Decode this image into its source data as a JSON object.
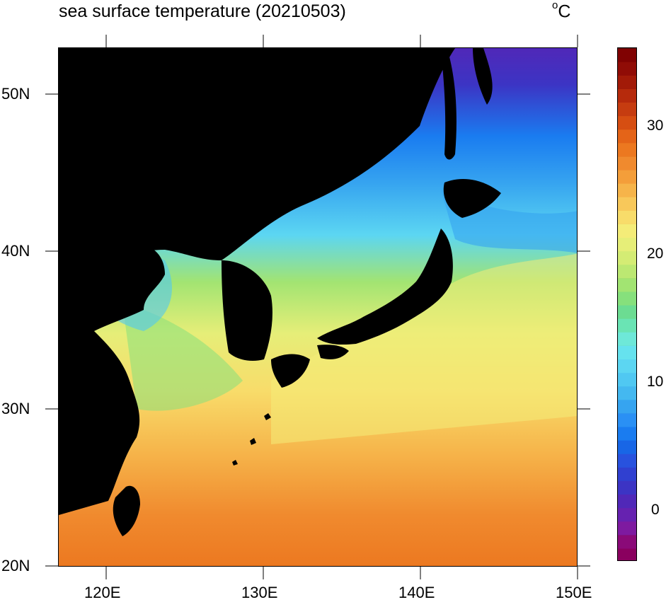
{
  "header": {
    "title": "sea surface temperature (20210503)",
    "units": "C",
    "units_degree": "o"
  },
  "axes": {
    "lon_labels": [
      "120E",
      "130E",
      "140E",
      "150E"
    ],
    "lat_labels": [
      "50N",
      "40N",
      "30N",
      "20N"
    ]
  },
  "colorbar": {
    "labels": [
      "30",
      "20",
      "10",
      "0"
    ],
    "range": [
      -4,
      36
    ],
    "interval": 1,
    "colors": [
      "#8a005f",
      "#8a0a78",
      "#7e1aa0",
      "#6622b0",
      "#5028b8",
      "#3c34c4",
      "#3040d0",
      "#2852de",
      "#1866e6",
      "#1a7cf0",
      "#2a90f4",
      "#36a4f0",
      "#44b8f0",
      "#50c8f2",
      "#5cd6f2",
      "#66e2ee",
      "#6ee8d8",
      "#6ae4b4",
      "#6cdc92",
      "#86e07c",
      "#a2e472",
      "#bce872",
      "#d4ec74",
      "#e6ee78",
      "#f4ec78",
      "#f8dc6a",
      "#f8c85a",
      "#f6b44a",
      "#f49e3a",
      "#f08a2e",
      "#ec7820",
      "#e46418",
      "#d64e12",
      "#c63c10",
      "#b62a0c",
      "#a21a08",
      "#900c06",
      "#800202"
    ]
  },
  "map": {
    "region": "East Asia / Japan",
    "lon_range": [
      117,
      150
    ],
    "lat_range": [
      20,
      53
    ],
    "land_color": "#000000"
  }
}
